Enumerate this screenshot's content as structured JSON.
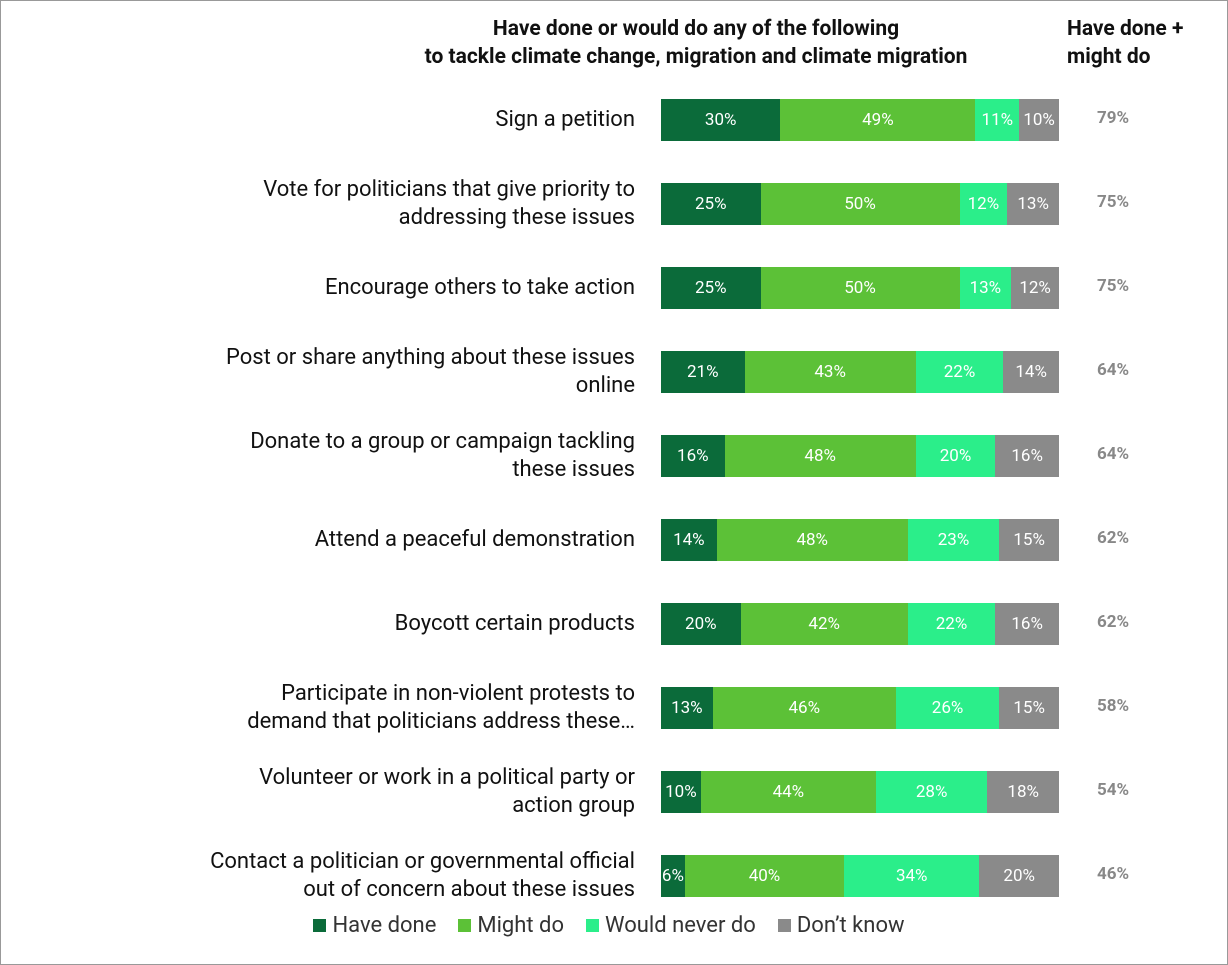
{
  "chart_data": {
    "type": "stacked_bar_horizontal",
    "title": "Have done or would do any of the following\nto tackle climate change, migration and climate migration",
    "categories": [
      "Sign a petition",
      "Vote for politicians that give priority to\naddressing these issues",
      "Encourage others to take action",
      "Post or share anything about these issues\nonline",
      "Donate to a group or campaign tackling\nthese issues",
      "Attend a peaceful demonstration",
      "Boycott certain products",
      "Participate in non-violent protests to\ndemand that politicians address these…",
      "Volunteer or work in a political party or\naction group",
      "Contact a politician or governmental official\nout of concern about these issues"
    ],
    "series": [
      {
        "name": "Have done",
        "color": "#0b6b3a",
        "values": [
          30,
          25,
          25,
          21,
          16,
          14,
          20,
          13,
          10,
          6
        ],
        "value_labels": [
          "30%",
          "25%",
          "25%",
          "21%",
          "16%",
          "14%",
          "20%",
          "13%",
          "10%",
          "6%"
        ]
      },
      {
        "name": "Might do",
        "color": "#5cc137",
        "values": [
          49,
          50,
          50,
          43,
          48,
          48,
          42,
          46,
          44,
          40
        ],
        "value_labels": [
          "49%",
          "50%",
          "50%",
          "43%",
          "48%",
          "48%",
          "42%",
          "46%",
          "44%",
          "40%"
        ]
      },
      {
        "name": "Would never do",
        "color": "#2bee8a",
        "values": [
          11,
          12,
          13,
          22,
          20,
          23,
          22,
          26,
          28,
          34
        ],
        "value_labels": [
          "11%",
          "12%",
          "13%",
          "22%",
          "20%",
          "23%",
          "22%",
          "26%",
          "28%",
          "34%"
        ]
      },
      {
        "name": "Don’t know",
        "color": "#8a8a8a",
        "values": [
          10,
          13,
          12,
          14,
          16,
          15,
          16,
          15,
          18,
          20
        ],
        "value_labels": [
          "10%",
          "13%",
          "12%",
          "14%",
          "16%",
          "15%",
          "16%",
          "15%",
          "18%",
          "20%"
        ]
      }
    ],
    "totals": {
      "title": "Have done +\nmight do",
      "values": [
        79,
        75,
        75,
        64,
        64,
        62,
        62,
        58,
        54,
        46
      ],
      "value_labels": [
        "79%",
        "75%",
        "75%",
        "64%",
        "64%",
        "62%",
        "62%",
        "58%",
        "54%",
        "46%"
      ]
    }
  }
}
